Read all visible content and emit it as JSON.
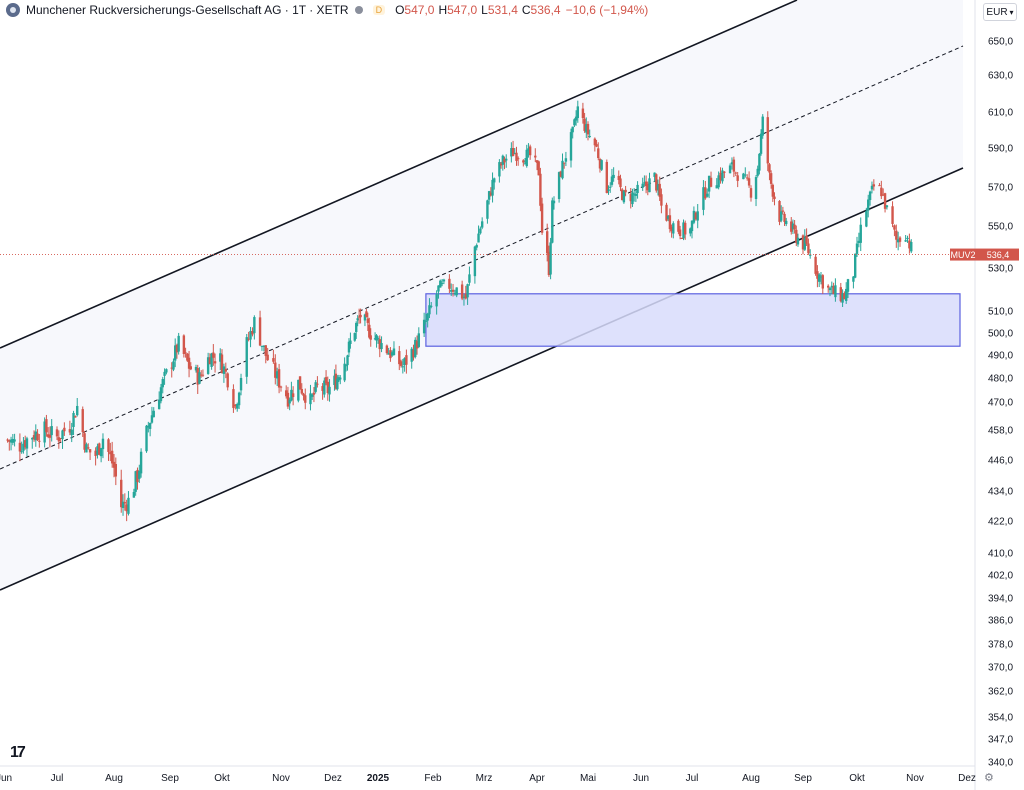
{
  "header": {
    "title": "Munchener Ruckversicherungs-Gesellschaft AG · 1T · XETR",
    "badge": "D",
    "o_label": "O",
    "o_value": "547,0",
    "h_label": "H",
    "h_value": "547,0",
    "l_label": "L",
    "l_value": "531,4",
    "c_label": "C",
    "c_value": "536,4",
    "change": "−10,6 (−1,94%)"
  },
  "currency": "EUR",
  "settings_icon": "gear-icon",
  "logo_icon": "tradingview-logo-icon",
  "colors": {
    "up": "#26a69a",
    "down": "#d2564b",
    "zone_fill": "#d8dcfb",
    "zone_stroke": "#5b61e0",
    "channel_fill": "#f7f8fc"
  },
  "chart_data": {
    "type": "candlestick",
    "symbol_label": "MUV2",
    "last_price": "536,4",
    "y_ticks": [
      "650,0",
      "630,0",
      "610,0",
      "590,0",
      "570,0",
      "550,0",
      "530,0",
      "510,0",
      "500,0",
      "490,0",
      "480,0",
      "470,0",
      "458,0",
      "446,0",
      "434,0",
      "422,0",
      "410,0",
      "402,0",
      "394,0",
      "386,0",
      "378,0",
      "370,0",
      "362,0",
      "354,0",
      "347,0",
      "340,0"
    ],
    "x_ticks": [
      "Jun",
      "Jul",
      "Aug",
      "Sep",
      "Okt",
      "Nov",
      "Dez",
      "2025",
      "Feb",
      "Mrz",
      "Apr",
      "Mai",
      "Jun",
      "Jul",
      "Aug",
      "Sep",
      "Okt",
      "Nov",
      "Dez"
    ],
    "support_zone": {
      "top": 518,
      "bottom": 494,
      "from": "2025-01-28",
      "to": "2025-12-20"
    },
    "closes": [
      [
        "2024-06-03",
        454
      ],
      [
        "2024-06-10",
        452
      ],
      [
        "2024-06-17",
        456
      ],
      [
        "2024-06-24",
        458
      ],
      [
        "2024-07-01",
        455
      ],
      [
        "2024-07-08",
        460
      ],
      [
        "2024-07-12",
        468
      ],
      [
        "2024-07-17",
        450
      ],
      [
        "2024-07-22",
        448
      ],
      [
        "2024-07-26",
        455
      ],
      [
        "2024-08-01",
        443
      ],
      [
        "2024-08-05",
        428
      ],
      [
        "2024-08-09",
        430
      ],
      [
        "2024-08-14",
        440
      ],
      [
        "2024-08-20",
        460
      ],
      [
        "2024-08-26",
        474
      ],
      [
        "2024-09-02",
        487
      ],
      [
        "2024-09-06",
        495
      ],
      [
        "2024-09-12",
        485
      ],
      [
        "2024-09-18",
        480
      ],
      [
        "2024-09-24",
        490
      ],
      [
        "2024-09-30",
        488
      ],
      [
        "2024-10-04",
        480
      ],
      [
        "2024-10-08",
        468
      ],
      [
        "2024-10-14",
        495
      ],
      [
        "2024-10-18",
        505
      ],
      [
        "2024-10-24",
        490
      ],
      [
        "2024-10-30",
        480
      ],
      [
        "2024-11-05",
        472
      ],
      [
        "2024-11-11",
        478
      ],
      [
        "2024-11-18",
        470
      ],
      [
        "2024-11-22",
        476
      ],
      [
        "2024-11-28",
        475
      ],
      [
        "2024-12-04",
        480
      ],
      [
        "2024-12-10",
        489
      ],
      [
        "2024-12-16",
        502
      ],
      [
        "2024-12-20",
        508
      ],
      [
        "2024-12-27",
        500
      ],
      [
        "2025-01-03",
        495
      ],
      [
        "2025-01-09",
        490
      ],
      [
        "2025-01-15",
        485
      ],
      [
        "2025-01-22",
        494
      ],
      [
        "2025-01-28",
        505
      ],
      [
        "2025-02-04",
        520
      ],
      [
        "2025-02-10",
        522
      ],
      [
        "2025-02-14",
        520
      ],
      [
        "2025-02-19",
        516
      ],
      [
        "2025-02-24",
        540
      ],
      [
        "2025-03-03",
        562
      ],
      [
        "2025-03-07",
        575
      ],
      [
        "2025-03-12",
        583
      ],
      [
        "2025-03-18",
        588
      ],
      [
        "2025-03-24",
        586
      ],
      [
        "2025-03-28",
        586
      ],
      [
        "2025-04-02",
        578
      ],
      [
        "2025-04-04",
        548
      ],
      [
        "2025-04-08",
        530
      ],
      [
        "2025-04-10",
        560
      ],
      [
        "2025-04-15",
        578
      ],
      [
        "2025-04-22",
        598
      ],
      [
        "2025-04-25",
        612
      ],
      [
        "2025-04-30",
        600
      ],
      [
        "2025-05-06",
        590
      ],
      [
        "2025-05-12",
        570
      ],
      [
        "2025-05-16",
        575
      ],
      [
        "2025-05-22",
        565
      ],
      [
        "2025-05-28",
        566
      ],
      [
        "2025-06-03",
        570
      ],
      [
        "2025-06-09",
        575
      ],
      [
        "2025-06-13",
        560
      ],
      [
        "2025-06-18",
        552
      ],
      [
        "2025-06-24",
        548
      ],
      [
        "2025-06-30",
        548
      ],
      [
        "2025-07-04",
        560
      ],
      [
        "2025-07-10",
        572
      ],
      [
        "2025-07-16",
        576
      ],
      [
        "2025-07-22",
        580
      ],
      [
        "2025-07-28",
        574
      ],
      [
        "2025-08-01",
        568
      ],
      [
        "2025-08-05",
        580
      ],
      [
        "2025-08-08",
        605
      ],
      [
        "2025-08-12",
        575
      ],
      [
        "2025-08-18",
        555
      ],
      [
        "2025-08-22",
        552
      ],
      [
        "2025-08-28",
        545
      ],
      [
        "2025-09-03",
        540
      ],
      [
        "2025-09-09",
        528
      ],
      [
        "2025-09-15",
        520
      ],
      [
        "2025-09-19",
        518
      ],
      [
        "2025-09-24",
        517
      ],
      [
        "2025-09-29",
        528
      ],
      [
        "2025-10-03",
        548
      ],
      [
        "2025-10-07",
        562
      ],
      [
        "2025-10-10",
        570
      ],
      [
        "2025-10-14",
        568
      ],
      [
        "2025-10-17",
        558
      ],
      [
        "2025-10-22",
        543
      ],
      [
        "2025-10-27",
        547
      ],
      [
        "2025-10-31",
        536.4
      ]
    ]
  }
}
